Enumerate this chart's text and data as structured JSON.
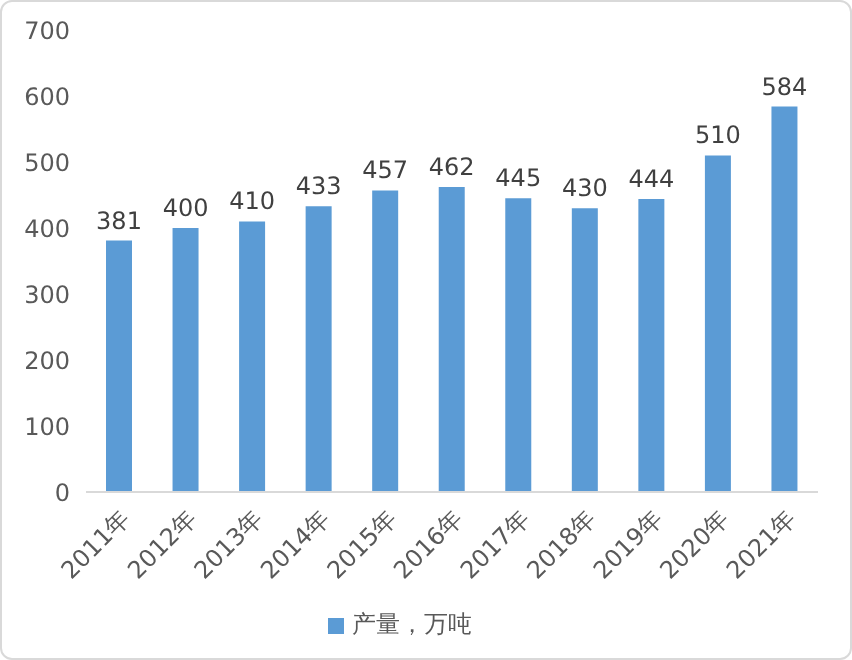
{
  "chart_data": {
    "type": "bar",
    "categories": [
      "2011年",
      "2012年",
      "2013年",
      "2014年",
      "2015年",
      "2016年",
      "2017年",
      "2018年",
      "2019年",
      "2020年",
      "2021年"
    ],
    "series": [
      {
        "name": "产量，万吨",
        "color": "#5b9bd5",
        "values": [
          381,
          400,
          410,
          433,
          457,
          462,
          445,
          430,
          444,
          510,
          584
        ]
      }
    ],
    "ylim": [
      0,
      700
    ],
    "yticks": [
      0,
      100,
      200,
      300,
      400,
      500,
      600,
      700
    ],
    "grid": false,
    "legend": "bottom",
    "data_labels": true
  }
}
